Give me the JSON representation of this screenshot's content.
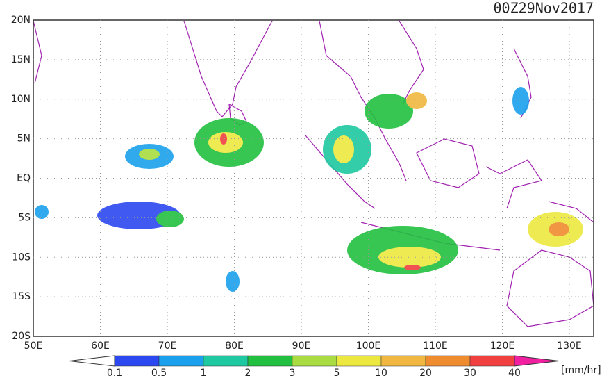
{
  "title": "00Z29Nov2017",
  "lat_labels": [
    "20N",
    "15N",
    "10N",
    "5N",
    "EQ",
    "5S",
    "10S",
    "15S",
    "20S"
  ],
  "lon_labels": [
    "50E",
    "60E",
    "70E",
    "80E",
    "90E",
    "100E",
    "110E",
    "120E",
    "130E"
  ],
  "colorbar": {
    "labels": [
      "0.1",
      "0.5",
      "1",
      "2",
      "3",
      "5",
      "10",
      "20",
      "30",
      "40"
    ],
    "colors": [
      "#2c48f0",
      "#1aa0ec",
      "#1ec8a0",
      "#22c040",
      "#a8dc40",
      "#ece840",
      "#f0b840",
      "#f08c30",
      "#f04040"
    ],
    "under_color": "#ffffff",
    "over_color": "#f020a0",
    "unit": "[mm/hr]"
  }
}
